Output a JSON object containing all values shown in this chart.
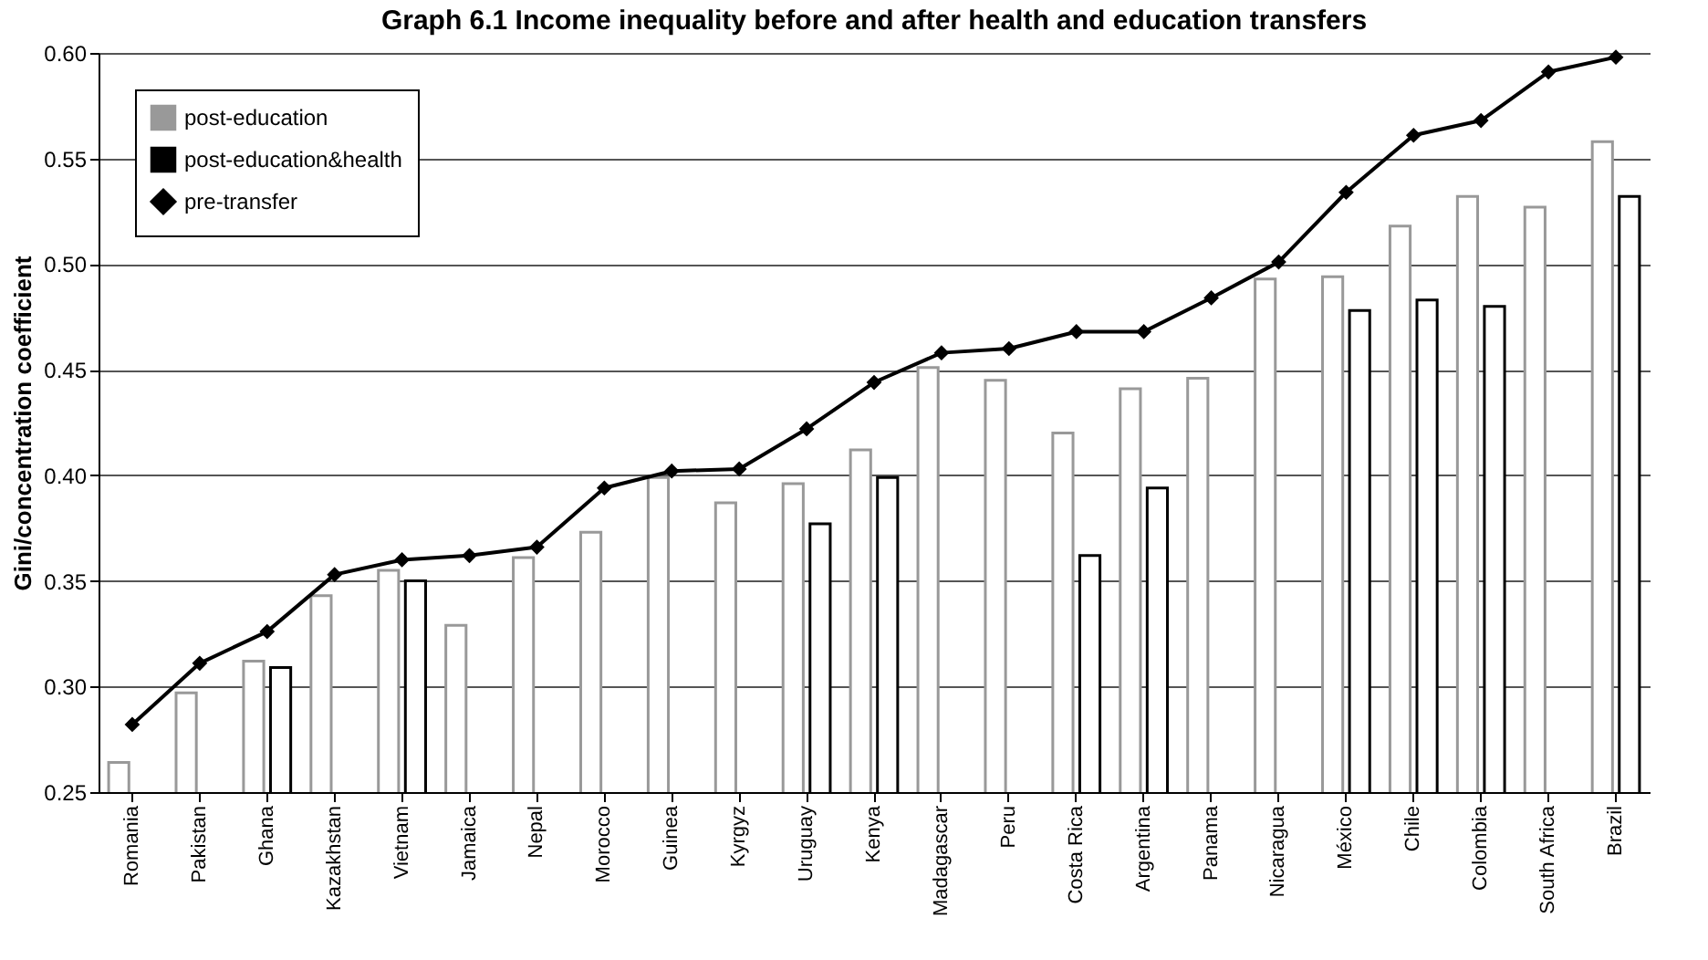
{
  "chart_data": {
    "type": "bar",
    "title": "Graph 6.1 Income inequality before and after health and education transfers",
    "ylabel": "Gini/concentration coefficient",
    "categories": [
      "Romania",
      "Pakistan",
      "Ghana",
      "Kazakhstan",
      "Vietnam",
      "Jamaica",
      "Nepal",
      "Morocco",
      "Guinea",
      "Kyrgyz",
      "Uruguay",
      "Kenya",
      "Madagascar",
      "Peru",
      "Costa Rica",
      "Argentina",
      "Panama",
      "Nicaragua",
      "México",
      "Chile",
      "Colombia",
      "South Africa",
      "Brazil"
    ],
    "series": [
      {
        "name": "post-education",
        "color": "#999999",
        "values": [
          0.264,
          0.297,
          0.312,
          0.343,
          0.355,
          0.329,
          0.361,
          0.373,
          0.399,
          0.387,
          0.396,
          0.412,
          0.451,
          0.445,
          0.42,
          0.441,
          0.446,
          0.493,
          0.494,
          0.518,
          0.532,
          0.527,
          0.558
        ]
      },
      {
        "name": "post-education&health",
        "color": "#000000",
        "values": [
          null,
          null,
          0.309,
          null,
          0.35,
          null,
          null,
          null,
          null,
          null,
          0.377,
          0.399,
          null,
          null,
          0.362,
          0.394,
          null,
          null,
          0.478,
          0.483,
          0.48,
          null,
          0.532
        ]
      },
      {
        "name": "pre-transfer",
        "type": "line",
        "color": "#000000",
        "marker": "diamond",
        "values": [
          0.282,
          0.311,
          0.326,
          0.353,
          0.36,
          0.362,
          0.366,
          0.394,
          0.402,
          0.403,
          0.422,
          0.444,
          0.458,
          0.46,
          0.468,
          0.468,
          0.484,
          0.501,
          0.534,
          0.561,
          0.568,
          0.591,
          0.598
        ]
      }
    ],
    "ylim": [
      0.25,
      0.6
    ],
    "yticks": [
      {
        "value": 0.25,
        "label": "0.25"
      },
      {
        "value": 0.3,
        "label": "0.30"
      },
      {
        "value": 0.35,
        "label": "0.35"
      },
      {
        "value": 0.4,
        "label": "0.40"
      },
      {
        "value": 0.45,
        "label": "0.45"
      },
      {
        "value": 0.5,
        "label": "0.50"
      },
      {
        "value": 0.55,
        "label": "0.55"
      },
      {
        "value": 0.6,
        "label": "0.60"
      }
    ],
    "grid": "y",
    "legend": "top left"
  }
}
